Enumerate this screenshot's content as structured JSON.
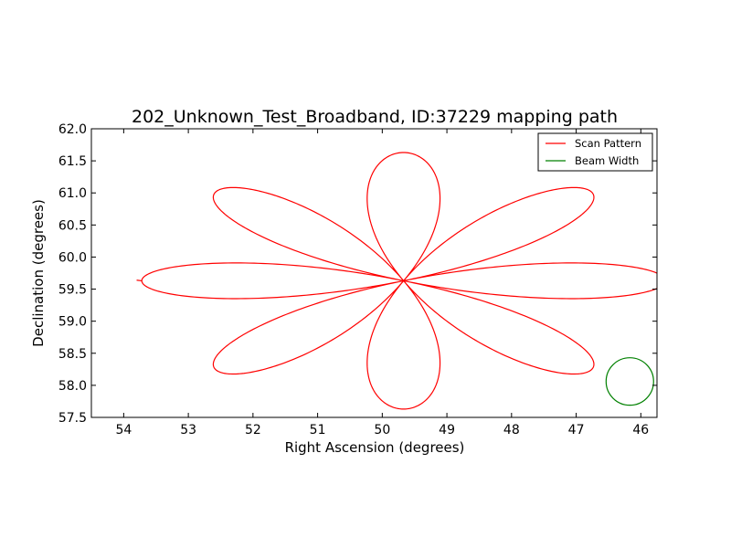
{
  "chart_data": {
    "type": "line",
    "title": "202_Unknown_Test_Broadband, ID:37229 mapping path",
    "xlabel": "Right Ascension (degrees)",
    "ylabel": "Declination (degrees)",
    "xlim": [
      54.5,
      45.75
    ],
    "ylim": [
      57.5,
      62.0
    ],
    "x_inverted": true,
    "grid": false,
    "legend_position": "top-right",
    "x_ticks": [
      54,
      53,
      52,
      51,
      50,
      49,
      48,
      47,
      46
    ],
    "x_tick_labels": [
      "54",
      "53",
      "52",
      "51",
      "50",
      "49",
      "48",
      "47",
      "46"
    ],
    "y_ticks": [
      57.5,
      58.0,
      58.5,
      59.0,
      59.5,
      60.0,
      60.5,
      61.0,
      61.5,
      62.0
    ],
    "y_tick_labels": [
      "57.5",
      "58.0",
      "58.5",
      "59.0",
      "59.5",
      "60.0",
      "60.5",
      "61.0",
      "61.5",
      "62.0"
    ],
    "series": [
      {
        "name": "Scan Pattern",
        "color": "#ff0000",
        "kind": "rose-curve",
        "center": [
          49.67,
          59.63
        ],
        "petals": 8,
        "petal_reach_ra": 4.05,
        "petal_reach_dec": 2.0,
        "lead_in_start": [
          53.8,
          59.64
        ],
        "clipped_at_right_edge": true
      },
      {
        "name": "Beam Width",
        "color": "#008000",
        "kind": "circle",
        "center": [
          46.17,
          58.06
        ],
        "radius_dec": 0.37
      }
    ]
  }
}
